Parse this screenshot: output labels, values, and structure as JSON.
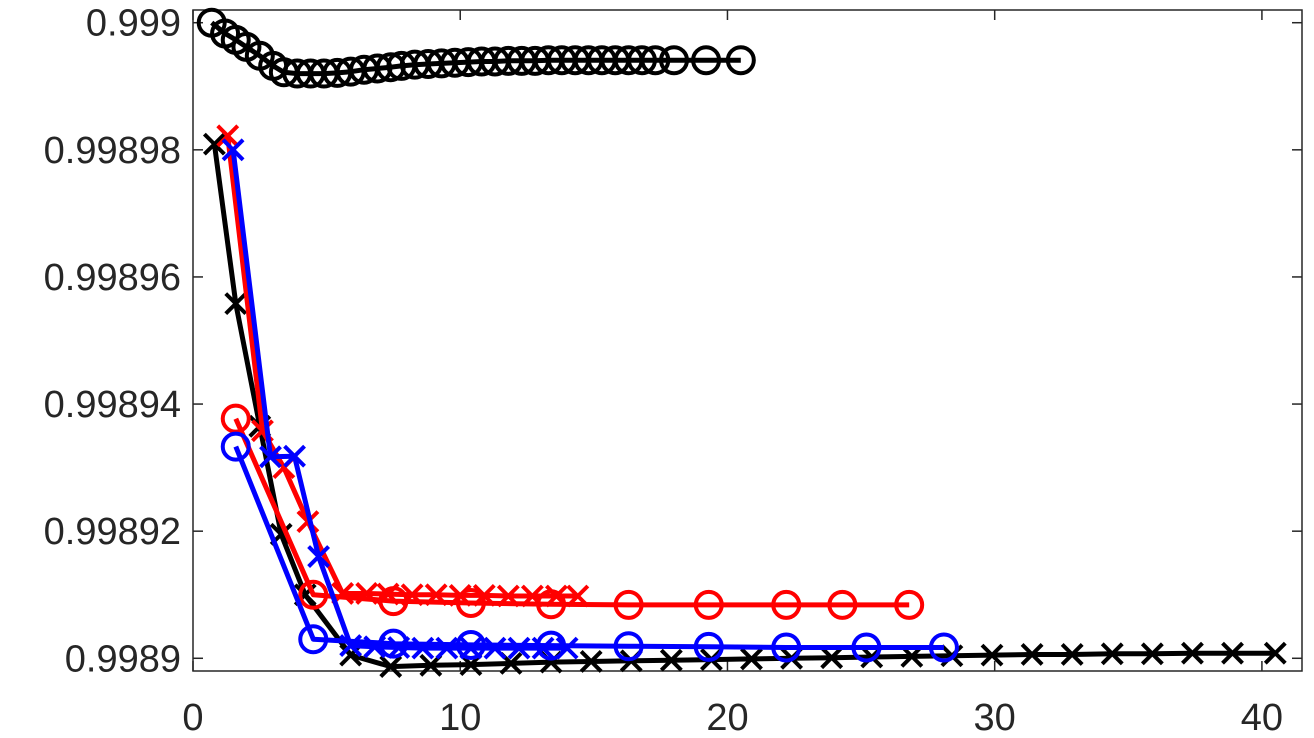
{
  "chart_data": {
    "type": "line",
    "title": "",
    "xlabel": "",
    "ylabel": "",
    "xlim": [
      0,
      41.5
    ],
    "ylim": [
      0.998898,
      0.999002
    ],
    "xticks": [
      0,
      10,
      20,
      30,
      40
    ],
    "xtick_labels": [
      "0",
      "10",
      "20",
      "30",
      "40"
    ],
    "yticks": [
      0.9989,
      0.99892,
      0.99894,
      0.99896,
      0.99898,
      0.999
    ],
    "ytick_labels": [
      "0.9989",
      "0.99892",
      "0.99894",
      "0.99896",
      "0.99898",
      "0.999"
    ],
    "grid": false,
    "legend": "none",
    "series": [
      {
        "color": "#000000",
        "marker": "o",
        "x": [
          0.7,
          1.2,
          1.6,
          2.0,
          2.5,
          3.0,
          3.4,
          3.9,
          4.4,
          4.9,
          5.4,
          5.9,
          6.4,
          6.9,
          7.4,
          7.8,
          8.3,
          8.8,
          9.3,
          9.8,
          10.3,
          10.8,
          11.3,
          11.8,
          12.3,
          12.8,
          13.3,
          13.8,
          14.3,
          14.8,
          15.3,
          15.8,
          16.3,
          16.8,
          17.3,
          18.0,
          19.2,
          20.5
        ],
        "y": [
          0.999,
          0.9989983,
          0.9989973,
          0.9989962,
          0.9989948,
          0.9989932,
          0.9989922,
          0.998992,
          0.998992,
          0.998992,
          0.9989921,
          0.9989923,
          0.9989926,
          0.9989928,
          0.998993,
          0.9989932,
          0.9989934,
          0.9989935,
          0.9989936,
          0.9989937,
          0.9989938,
          0.9989939,
          0.9989939,
          0.998994,
          0.998994,
          0.998994,
          0.9989941,
          0.9989941,
          0.9989941,
          0.9989941,
          0.9989941,
          0.9989941,
          0.9989941,
          0.9989941,
          0.9989941,
          0.9989941,
          0.9989941,
          0.9989941
        ]
      },
      {
        "color": "#000000",
        "marker": "x",
        "x": [
          0.8,
          1.6,
          2.5,
          3.3,
          4.2,
          5.9,
          7.4,
          8.9,
          10.4,
          11.9,
          13.4,
          14.9,
          16.4,
          17.9,
          19.4,
          20.9,
          22.4,
          23.9,
          25.4,
          26.9,
          28.4,
          29.9,
          31.4,
          32.9,
          34.4,
          35.9,
          37.4,
          38.9,
          40.5
        ],
        "y": [
          0.9989809,
          0.9989558,
          0.9989365,
          0.9989195,
          0.99891,
          0.9989005,
          0.9988987,
          0.9988989,
          0.998899,
          0.9988992,
          0.9988994,
          0.9988995,
          0.9988996,
          0.9988997,
          0.9988998,
          0.9988999,
          0.9989,
          0.9989001,
          0.9989002,
          0.9989003,
          0.9989004,
          0.9989005,
          0.9989006,
          0.9989006,
          0.9989007,
          0.9989007,
          0.9989008,
          0.9989008,
          0.9989008
        ]
      },
      {
        "color": "#ff0000",
        "marker": "x",
        "x": [
          1.3,
          2.6,
          3.4,
          4.3,
          5.6,
          6.5,
          7.3,
          8.2,
          9.1,
          10.0,
          10.9,
          11.8,
          12.7,
          13.6,
          14.4
        ],
        "y": [
          0.9989822,
          0.9989358,
          0.99893,
          0.9989215,
          0.9989102,
          0.9989102,
          0.9989101,
          0.99891,
          0.99891,
          0.9989099,
          0.9989099,
          0.9989098,
          0.9989098,
          0.9989098,
          0.9989098
        ]
      },
      {
        "color": "#ff0000",
        "marker": "o",
        "x": [
          1.6,
          4.5,
          7.5,
          10.4,
          13.4,
          16.3,
          19.3,
          22.2,
          24.3,
          26.8
        ],
        "y": [
          0.9989377,
          0.99891,
          0.998909,
          0.9989087,
          0.9989085,
          0.9989084,
          0.9989084,
          0.9989084,
          0.9989084,
          0.9989084
        ]
      },
      {
        "color": "#0000ff",
        "marker": "x",
        "x": [
          1.5,
          2.9,
          3.8,
          4.7,
          5.9,
          6.8,
          7.7,
          8.6,
          9.5,
          10.4,
          11.3,
          12.2,
          13.1,
          14.0
        ],
        "y": [
          0.99898,
          0.9989317,
          0.9989318,
          0.998916,
          0.998902,
          0.9989018,
          0.9989017,
          0.9989016,
          0.9989016,
          0.9989016,
          0.9989016,
          0.9989016,
          0.9989016,
          0.9989016
        ]
      },
      {
        "color": "#0000ff",
        "marker": "o",
        "x": [
          1.6,
          4.5,
          7.5,
          10.4,
          13.4,
          16.3,
          19.3,
          22.2,
          25.2,
          28.1
        ],
        "y": [
          0.9989333,
          0.998903,
          0.9989023,
          0.9989021,
          0.998902,
          0.9989019,
          0.9989018,
          0.9989017,
          0.9989017,
          0.9989017
        ]
      }
    ]
  }
}
